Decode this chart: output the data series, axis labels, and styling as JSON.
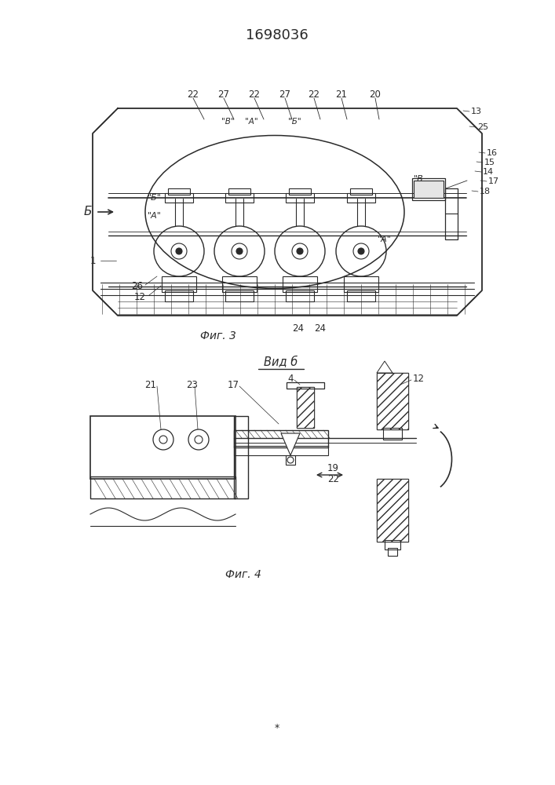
{
  "title": "1698036",
  "title_fontsize": 13,
  "background_color": "#ffffff",
  "line_color": "#2a2a2a",
  "fig3_caption": "Фиг. 3",
  "fig4_caption": "Фиг. 4",
  "vid_b_label": "Вид б",
  "b_label": "Б"
}
